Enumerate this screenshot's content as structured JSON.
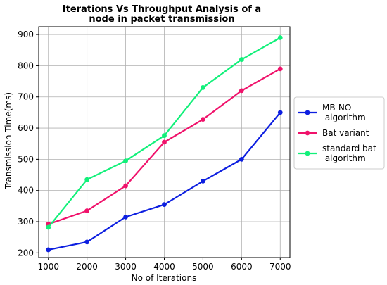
{
  "chart_data": {
    "type": "line",
    "title": [
      "Iterations Vs Throughput Analysis of a",
      "node in packet transmission"
    ],
    "xlabel": "No of Iterations",
    "ylabel": "Transmission Time(ms)",
    "x": [
      1000,
      2000,
      3000,
      4000,
      5000,
      6000,
      7000
    ],
    "x_ticks": [
      "1000",
      "2000",
      "3000",
      "4000",
      "5000",
      "6000",
      "7000"
    ],
    "xlim": [
      750,
      7250
    ],
    "ylim": [
      185,
      925
    ],
    "y_ticks": [
      200,
      300,
      400,
      500,
      600,
      700,
      800,
      900
    ],
    "grid": true,
    "legend_position": "right-outside",
    "series": [
      {
        "name": [
          "MB-NO",
          " algorithm"
        ],
        "color": "#0d1fe0",
        "values": [
          210,
          235,
          315,
          355,
          430,
          500,
          650
        ]
      },
      {
        "name": [
          "Bat variant"
        ],
        "color": "#f0126b",
        "values": [
          292,
          335,
          415,
          555,
          628,
          720,
          790
        ]
      },
      {
        "name": [
          "standard bat",
          " algorithm"
        ],
        "color": "#12f07a",
        "values": [
          282,
          435,
          495,
          576,
          730,
          820,
          890
        ]
      }
    ]
  }
}
